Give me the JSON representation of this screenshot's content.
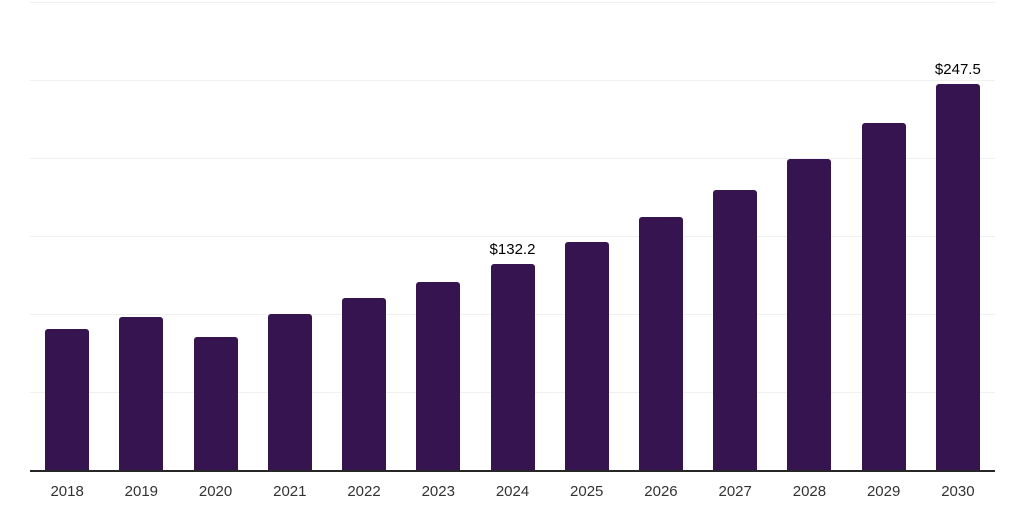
{
  "chart_data": {
    "type": "bar",
    "title": "",
    "categories": [
      "2018",
      "2019",
      "2020",
      "2021",
      "2022",
      "2023",
      "2024",
      "2025",
      "2026",
      "2027",
      "2028",
      "2029",
      "2030"
    ],
    "values": [
      90.4,
      98.1,
      85.3,
      100.0,
      110.3,
      120.5,
      132.2,
      146.2,
      162.2,
      179.5,
      199.4,
      222.5,
      247.5
    ],
    "data_labels": {
      "2024": "$132.2",
      "2030": "$247.5"
    },
    "value_prefix": "$",
    "ylim": [
      0,
      300
    ],
    "grid_step": 50,
    "grid": "horizontal",
    "legend_position": "none",
    "xlabel": "",
    "ylabel": "",
    "colors": {
      "bar": "#351450",
      "axis_line": "#262626",
      "gridline": "#f0f0f0",
      "tick_label": "#333333",
      "data_label": "#000000",
      "background": "#ffffff"
    }
  }
}
